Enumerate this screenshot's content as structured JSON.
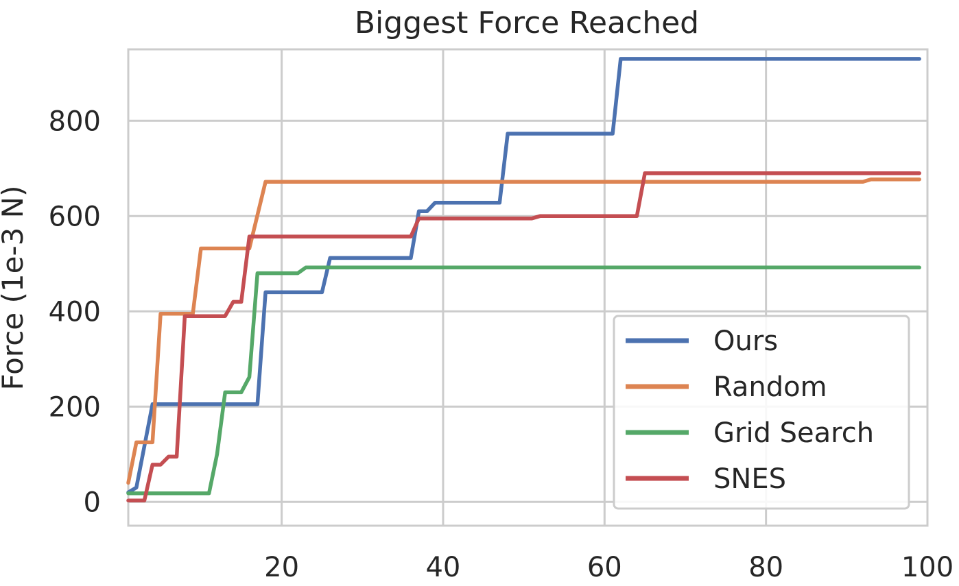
{
  "chart_data": {
    "type": "line",
    "title": "Biggest Force Reached",
    "xlabel": "",
    "ylabel": "Force (1e-3 N)",
    "xlim": [
      1,
      100
    ],
    "ylim": [
      -50,
      950
    ],
    "xticks": [
      20,
      40,
      60,
      80,
      100
    ],
    "yticks": [
      0,
      200,
      400,
      600,
      800
    ],
    "grid": true,
    "legend_position": "lower-right",
    "series": [
      {
        "name": "Ours",
        "color": "#4c72b0",
        "points": [
          [
            1,
            20
          ],
          [
            2,
            30
          ],
          [
            4,
            205
          ],
          [
            17,
            205
          ],
          [
            18,
            440
          ],
          [
            25,
            440
          ],
          [
            26,
            512
          ],
          [
            36,
            512
          ],
          [
            37,
            610
          ],
          [
            38,
            610
          ],
          [
            39,
            628
          ],
          [
            47,
            628
          ],
          [
            48,
            773
          ],
          [
            61,
            773
          ],
          [
            62,
            930
          ],
          [
            99,
            930
          ]
        ]
      },
      {
        "name": "Random",
        "color": "#dd8452",
        "points": [
          [
            1,
            40
          ],
          [
            2,
            125
          ],
          [
            4,
            125
          ],
          [
            5,
            395
          ],
          [
            9,
            395
          ],
          [
            10,
            532
          ],
          [
            16,
            532
          ],
          [
            18,
            672
          ],
          [
            92,
            672
          ],
          [
            93,
            677
          ],
          [
            99,
            677
          ]
        ]
      },
      {
        "name": "Grid Search",
        "color": "#55a868",
        "points": [
          [
            1,
            18
          ],
          [
            11,
            18
          ],
          [
            12,
            100
          ],
          [
            13,
            230
          ],
          [
            15,
            230
          ],
          [
            16,
            262
          ],
          [
            17,
            480
          ],
          [
            22,
            480
          ],
          [
            23,
            492
          ],
          [
            99,
            492
          ]
        ]
      },
      {
        "name": "SNES",
        "color": "#c44e52",
        "points": [
          [
            1,
            3
          ],
          [
            3,
            3
          ],
          [
            4,
            78
          ],
          [
            5,
            78
          ],
          [
            6,
            95
          ],
          [
            7,
            95
          ],
          [
            8,
            390
          ],
          [
            13,
            390
          ],
          [
            14,
            420
          ],
          [
            15,
            420
          ],
          [
            16,
            557
          ],
          [
            36,
            557
          ],
          [
            37,
            595
          ],
          [
            51,
            595
          ],
          [
            52,
            600
          ],
          [
            64,
            600
          ],
          [
            65,
            690
          ],
          [
            99,
            690
          ]
        ]
      }
    ]
  }
}
